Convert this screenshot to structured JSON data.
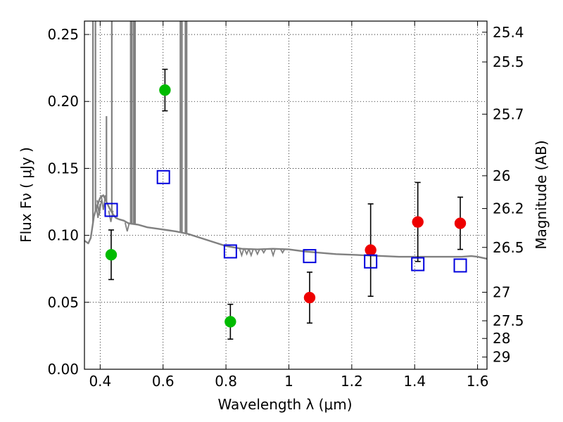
{
  "chart_data": {
    "type": "scatter",
    "xlabel": "Wavelength  λ (μm)",
    "ylabel": "Flux  Fν  ( μJy )",
    "ylabel_right": "Magnitude (AB)",
    "xlim": [
      0.35,
      1.63
    ],
    "ylim": [
      0.0,
      0.26
    ],
    "grid": true,
    "x_ticks": [
      0.4,
      0.6,
      0.8,
      1.0,
      1.2,
      1.4,
      1.6
    ],
    "x_tick_labels": [
      "0.4",
      "0.6",
      "0.8",
      "1",
      "1.2",
      "1.4",
      "1.6"
    ],
    "y_ticks": [
      0.0,
      0.05,
      0.1,
      0.15,
      0.2,
      0.25
    ],
    "y_tick_labels": [
      "0.00",
      "0.05",
      "0.10",
      "0.15",
      "0.20",
      "0.25"
    ],
    "right_ticks": [
      {
        "flux": 0.2517,
        "label": "25.4"
      },
      {
        "flux": 0.2295,
        "label": "25.5"
      },
      {
        "flux": 0.1905,
        "label": "25.7"
      },
      {
        "flux": 0.1445,
        "label": "26"
      },
      {
        "flux": 0.12,
        "label": "26.2"
      },
      {
        "flux": 0.091,
        "label": "26.5"
      },
      {
        "flux": 0.0575,
        "label": "27"
      },
      {
        "flux": 0.0362,
        "label": "27.5"
      },
      {
        "flux": 0.023,
        "label": "28"
      },
      {
        "flux": 0.0091,
        "label": "29"
      }
    ],
    "series": [
      {
        "kind": "green_points",
        "color": "#00bb00",
        "points": [
          {
            "x": 0.435,
            "y": 0.0855,
            "err": 0.0185
          },
          {
            "x": 0.606,
            "y": 0.2085,
            "err": 0.0155
          },
          {
            "x": 0.814,
            "y": 0.0355,
            "err": 0.013
          }
        ]
      },
      {
        "kind": "red_points",
        "color": "#ee0000",
        "points": [
          {
            "x": 1.066,
            "y": 0.0535,
            "err": 0.019
          },
          {
            "x": 1.26,
            "y": 0.089,
            "err": 0.0345
          },
          {
            "x": 1.41,
            "y": 0.11,
            "err": 0.0295
          },
          {
            "x": 1.545,
            "y": 0.109,
            "err": 0.0195
          }
        ]
      },
      {
        "kind": "model_squares",
        "color": "#0000dd",
        "points": [
          {
            "x": 0.435,
            "y": 0.119
          },
          {
            "x": 0.601,
            "y": 0.1435
          },
          {
            "x": 0.814,
            "y": 0.088
          },
          {
            "x": 1.066,
            "y": 0.0845
          },
          {
            "x": 1.26,
            "y": 0.0805
          },
          {
            "x": 1.41,
            "y": 0.0785
          },
          {
            "x": 1.545,
            "y": 0.0775
          }
        ]
      }
    ],
    "model_curve": {
      "color": "#808080",
      "points": [
        [
          0.35,
          0.096
        ],
        [
          0.362,
          0.094
        ],
        [
          0.37,
          0.098
        ],
        [
          0.375,
          0.106
        ],
        [
          0.38,
          0.114
        ],
        [
          0.385,
          0.118
        ],
        [
          0.39,
          0.121
        ],
        [
          0.395,
          0.125
        ],
        [
          0.4,
          0.128
        ],
        [
          0.41,
          0.13
        ],
        [
          0.42,
          0.125
        ],
        [
          0.43,
          0.12
        ],
        [
          0.44,
          0.116
        ],
        [
          0.45,
          0.113
        ],
        [
          0.46,
          0.112
        ],
        [
          0.475,
          0.111
        ],
        [
          0.49,
          0.109
        ],
        [
          0.52,
          0.108
        ],
        [
          0.55,
          0.106
        ],
        [
          0.58,
          0.105
        ],
        [
          0.61,
          0.104
        ],
        [
          0.64,
          0.103
        ],
        [
          0.68,
          0.101
        ],
        [
          0.72,
          0.098
        ],
        [
          0.76,
          0.095
        ],
        [
          0.8,
          0.092
        ],
        [
          0.85,
          0.09
        ],
        [
          0.9,
          0.0895
        ],
        [
          0.95,
          0.09
        ],
        [
          1.0,
          0.0895
        ],
        [
          1.05,
          0.088
        ],
        [
          1.1,
          0.087
        ],
        [
          1.15,
          0.086
        ],
        [
          1.2,
          0.0855
        ],
        [
          1.25,
          0.085
        ],
        [
          1.3,
          0.0845
        ],
        [
          1.35,
          0.084
        ],
        [
          1.4,
          0.084
        ],
        [
          1.45,
          0.084
        ],
        [
          1.5,
          0.084
        ],
        [
          1.55,
          0.084
        ],
        [
          1.58,
          0.0845
        ],
        [
          1.6,
          0.084
        ],
        [
          1.63,
          0.0825
        ]
      ],
      "spikes": [
        {
          "x": 0.377,
          "top": 0.26
        },
        {
          "x": 0.385,
          "top": 0.26
        },
        {
          "x": 0.42,
          "top": 0.189
        },
        {
          "x": 0.437,
          "top": 0.26
        },
        {
          "x": 0.497,
          "top": 0.26
        },
        {
          "x": 0.501,
          "top": 0.26
        },
        {
          "x": 0.507,
          "top": 0.26
        },
        {
          "x": 0.511,
          "top": 0.26
        },
        {
          "x": 0.655,
          "top": 0.26
        },
        {
          "x": 0.66,
          "top": 0.26
        },
        {
          "x": 0.671,
          "top": 0.26
        },
        {
          "x": 0.675,
          "top": 0.26
        }
      ],
      "absorption": [
        {
          "x": 0.393,
          "bottom": 0.113
        },
        {
          "x": 0.397,
          "bottom": 0.115
        },
        {
          "x": 0.41,
          "bottom": 0.119
        },
        {
          "x": 0.434,
          "bottom": 0.11
        },
        {
          "x": 0.486,
          "bottom": 0.103
        },
        {
          "x": 0.85,
          "bottom": 0.085
        },
        {
          "x": 0.866,
          "bottom": 0.086
        },
        {
          "x": 0.88,
          "bottom": 0.085
        },
        {
          "x": 0.9,
          "bottom": 0.086
        },
        {
          "x": 0.92,
          "bottom": 0.087
        },
        {
          "x": 0.95,
          "bottom": 0.085
        },
        {
          "x": 0.98,
          "bottom": 0.087
        }
      ]
    }
  }
}
